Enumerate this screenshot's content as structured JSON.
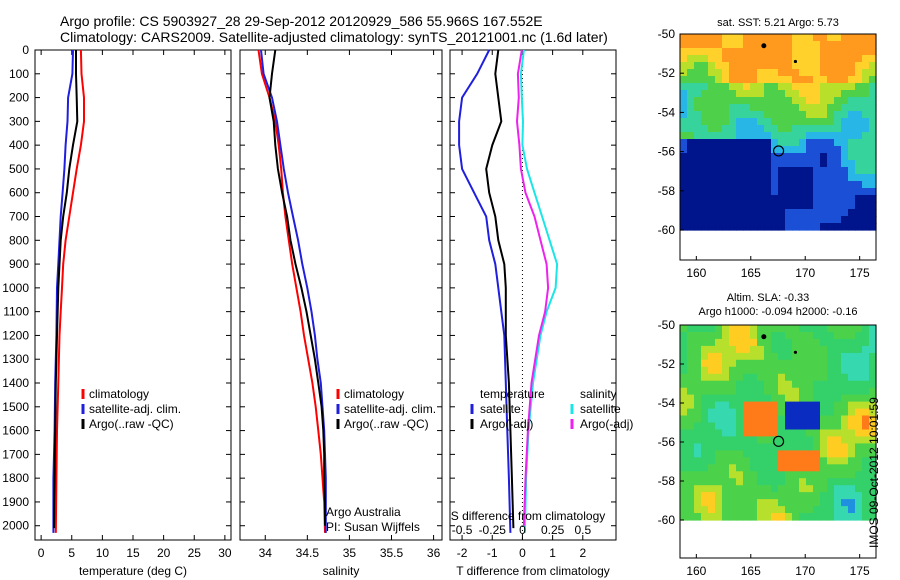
{
  "header": {
    "line1": "Argo profile: CS 5903927_28 29-Sep-2012 20120929_586 55.966S 167.552E",
    "line2": "Climatology: CARS2009. Satellite-adjusted climatology: synTS_20121001.nc (1.6d later)"
  },
  "credits": {
    "line1": "Argo Australia",
    "line2": "PI: Susan Wijffels"
  },
  "timestamp": "IMOS 09-Oct-2012 10:01:59",
  "colors": {
    "clim": "#ff0000",
    "sat": "#1f1fdd",
    "argo": "#000000",
    "cyan": "#19e6e6",
    "magenta": "#ee22ee"
  },
  "chart_data": [
    {
      "type": "line",
      "xlabel": "temperature (deg C)",
      "ylabel": "",
      "xlim": [
        -1,
        31
      ],
      "ylim": [
        2060,
        0
      ],
      "x_ticks": [
        0,
        5,
        10,
        15,
        20,
        25,
        30
      ],
      "y_ticks": [
        0,
        100,
        200,
        300,
        400,
        500,
        600,
        700,
        800,
        900,
        1000,
        1100,
        1200,
        1300,
        1400,
        1500,
        1600,
        1700,
        1800,
        1900,
        2000
      ],
      "legend": [
        "climatology",
        "satellite-adj. clim.",
        "Argo(..raw -QC)"
      ],
      "legend_placement": "lower-right",
      "series": [
        {
          "name": "climatology",
          "color": "clim",
          "points": [
            [
              6.5,
              0
            ],
            [
              6.6,
              100
            ],
            [
              7.0,
              200
            ],
            [
              7.0,
              300
            ],
            [
              6.5,
              400
            ],
            [
              5.8,
              500
            ],
            [
              5.2,
              600
            ],
            [
              4.6,
              700
            ],
            [
              4.0,
              800
            ],
            [
              3.6,
              900
            ],
            [
              3.4,
              1000
            ],
            [
              3.2,
              1100
            ],
            [
              3.0,
              1200
            ],
            [
              2.8,
              1400
            ],
            [
              2.6,
              1600
            ],
            [
              2.5,
              1800
            ],
            [
              2.4,
              2030
            ]
          ]
        },
        {
          "name": "satellite-adj. clim.",
          "color": "sat",
          "points": [
            [
              5.2,
              0
            ],
            [
              5.1,
              100
            ],
            [
              4.4,
              200
            ],
            [
              4.3,
              300
            ],
            [
              4.0,
              400
            ],
            [
              3.8,
              500
            ],
            [
              3.5,
              600
            ],
            [
              3.2,
              700
            ],
            [
              3.0,
              800
            ],
            [
              2.8,
              900
            ],
            [
              2.6,
              1000
            ],
            [
              2.5,
              1200
            ],
            [
              2.3,
              1400
            ],
            [
              2.2,
              1600
            ],
            [
              2.0,
              1800
            ],
            [
              2.0,
              2030
            ]
          ]
        },
        {
          "name": "Argo(..raw -QC)",
          "color": "argo",
          "points": [
            [
              5.7,
              0
            ],
            [
              5.7,
              100
            ],
            [
              5.8,
              200
            ],
            [
              5.9,
              300
            ],
            [
              5.2,
              400
            ],
            [
              4.6,
              500
            ],
            [
              4.2,
              600
            ],
            [
              3.6,
              700
            ],
            [
              3.2,
              800
            ],
            [
              3.0,
              900
            ],
            [
              2.8,
              1000
            ],
            [
              2.6,
              1200
            ],
            [
              2.4,
              1400
            ],
            [
              2.3,
              1600
            ],
            [
              2.2,
              1800
            ],
            [
              2.1,
              2010
            ]
          ]
        }
      ]
    },
    {
      "type": "line",
      "xlabel": "salinity",
      "xlim": [
        33.7,
        36.1
      ],
      "ylim": [
        2060,
        0
      ],
      "x_ticks": [
        34,
        34.5,
        35,
        35.5,
        36
      ],
      "legend": [
        "climatology",
        "satellite-adj. clim.",
        "Argo(..raw -QC)"
      ],
      "legend_placement": "lower-right",
      "series": [
        {
          "name": "climatology",
          "color": "clim",
          "points": [
            [
              33.92,
              0
            ],
            [
              33.96,
              100
            ],
            [
              34.05,
              200
            ],
            [
              34.12,
              300
            ],
            [
              34.16,
              400
            ],
            [
              34.19,
              500
            ],
            [
              34.21,
              600
            ],
            [
              34.24,
              700
            ],
            [
              34.28,
              800
            ],
            [
              34.32,
              900
            ],
            [
              34.37,
              1000
            ],
            [
              34.42,
              1100
            ],
            [
              34.46,
              1200
            ],
            [
              34.51,
              1300
            ],
            [
              34.56,
              1400
            ],
            [
              34.6,
              1500
            ],
            [
              34.63,
              1600
            ],
            [
              34.66,
              1700
            ],
            [
              34.68,
              1800
            ],
            [
              34.7,
              1900
            ],
            [
              34.71,
              2030
            ]
          ]
        },
        {
          "name": "satellite-adj. clim.",
          "color": "sat",
          "points": [
            [
              33.95,
              0
            ],
            [
              33.98,
              100
            ],
            [
              34.08,
              200
            ],
            [
              34.14,
              300
            ],
            [
              34.18,
              400
            ],
            [
              34.22,
              500
            ],
            [
              34.27,
              600
            ],
            [
              34.33,
              700
            ],
            [
              34.39,
              800
            ],
            [
              34.44,
              900
            ],
            [
              34.5,
              1000
            ],
            [
              34.55,
              1100
            ],
            [
              34.59,
              1200
            ],
            [
              34.62,
              1300
            ],
            [
              34.66,
              1400
            ],
            [
              34.68,
              1500
            ],
            [
              34.7,
              1600
            ],
            [
              34.71,
              1700
            ],
            [
              34.72,
              1800
            ],
            [
              34.72,
              1900
            ],
            [
              34.72,
              2030
            ]
          ]
        },
        {
          "name": "Argo(..raw -QC)",
          "color": "argo",
          "points": [
            [
              34.12,
              0
            ],
            [
              34.08,
              100
            ],
            [
              34.05,
              200
            ],
            [
              34.1,
              300
            ],
            [
              34.12,
              400
            ],
            [
              34.15,
              500
            ],
            [
              34.2,
              600
            ],
            [
              34.26,
              700
            ],
            [
              34.3,
              800
            ],
            [
              34.36,
              900
            ],
            [
              34.43,
              1000
            ],
            [
              34.49,
              1100
            ],
            [
              34.54,
              1200
            ],
            [
              34.59,
              1300
            ],
            [
              34.63,
              1400
            ],
            [
              34.67,
              1500
            ],
            [
              34.69,
              1600
            ],
            [
              34.7,
              1700
            ],
            [
              34.7,
              1800
            ],
            [
              34.71,
              1900
            ],
            [
              34.71,
              2000
            ]
          ]
        }
      ]
    },
    {
      "type": "line",
      "xlabel": "T difference from climatology",
      "x_ticks": [
        -2,
        -1,
        0,
        1,
        2
      ],
      "xlim": [
        -2.4,
        3.1
      ],
      "ylim": [
        2060,
        0
      ],
      "secondary_xlabel": "S difference from climatology",
      "secondary_x_ticks": [
        "-0.5",
        "-0.25",
        "0",
        "0.25",
        "0.5"
      ],
      "secondary_x_values": [
        -0.5,
        -0.25,
        0,
        0.25,
        0.5
      ],
      "zero_line": "dotted",
      "legend": [
        {
          "group": "temperature",
          "items": [
            "satellite",
            "Argo(-adj)"
          ]
        },
        {
          "group": "salinity",
          "items": [
            "satellite",
            "Argo(-adj)"
          ]
        }
      ],
      "series": [
        {
          "name": "temperature satellite",
          "color": "sat",
          "points": [
            [
              -1.1,
              0
            ],
            [
              -1.5,
              100
            ],
            [
              -2.0,
              200
            ],
            [
              -2.1,
              300
            ],
            [
              -2.1,
              400
            ],
            [
              -2.0,
              500
            ],
            [
              -1.6,
              600
            ],
            [
              -1.2,
              700
            ],
            [
              -1.1,
              800
            ],
            [
              -0.9,
              900
            ],
            [
              -0.8,
              1000
            ],
            [
              -0.7,
              1100
            ],
            [
              -0.6,
              1200
            ],
            [
              -0.55,
              1400
            ],
            [
              -0.5,
              1600
            ],
            [
              -0.45,
              1800
            ],
            [
              -0.4,
              2030
            ]
          ]
        },
        {
          "name": "temperature Argo(-adj)",
          "color": "argo",
          "points": [
            [
              -0.8,
              0
            ],
            [
              -0.9,
              100
            ],
            [
              -0.8,
              200
            ],
            [
              -0.7,
              300
            ],
            [
              -1.0,
              400
            ],
            [
              -1.2,
              500
            ],
            [
              -1.1,
              600
            ],
            [
              -0.9,
              700
            ],
            [
              -0.8,
              800
            ],
            [
              -0.6,
              900
            ],
            [
              -0.55,
              1000
            ],
            [
              -0.55,
              1200
            ],
            [
              -0.45,
              1400
            ],
            [
              -0.4,
              1600
            ],
            [
              -0.35,
              1800
            ],
            [
              -0.3,
              2010
            ]
          ]
        },
        {
          "name": "salinity satellite",
          "color": "cyan",
          "points": [
            [
              0.05,
              0
            ],
            [
              -0.05,
              100
            ],
            [
              -0.02,
              200
            ],
            [
              0.02,
              300
            ],
            [
              0.0,
              400
            ],
            [
              0.15,
              500
            ],
            [
              0.4,
              600
            ],
            [
              0.65,
              700
            ],
            [
              0.9,
              800
            ],
            [
              1.15,
              900
            ],
            [
              1.1,
              1000
            ],
            [
              0.8,
              1100
            ],
            [
              0.6,
              1200
            ],
            [
              0.35,
              1400
            ],
            [
              0.2,
              1600
            ],
            [
              0.12,
              1800
            ],
            [
              0.08,
              2030
            ]
          ]
        },
        {
          "name": "salinity Argo(-adj)",
          "color": "magenta",
          "points": [
            [
              -0.02,
              0
            ],
            [
              -0.15,
              100
            ],
            [
              -0.12,
              200
            ],
            [
              -0.18,
              300
            ],
            [
              -0.1,
              400
            ],
            [
              -0.05,
              500
            ],
            [
              0.1,
              600
            ],
            [
              0.4,
              700
            ],
            [
              0.6,
              800
            ],
            [
              0.8,
              900
            ],
            [
              0.85,
              1000
            ],
            [
              0.75,
              1100
            ],
            [
              0.55,
              1200
            ],
            [
              0.3,
              1400
            ],
            [
              0.18,
              1600
            ],
            [
              0.1,
              1800
            ],
            [
              0.05,
              2000
            ]
          ]
        }
      ]
    },
    {
      "type": "heatmap",
      "title": "sat. SST: 5.21  Argo: 5.73",
      "xlim": [
        158.5,
        176.5
      ],
      "ylim": [
        -60,
        -50
      ],
      "x_ticks": [
        160,
        165,
        170,
        175
      ],
      "y_ticks": [
        -50,
        -52,
        -54,
        -56,
        -58,
        -60
      ],
      "float_position": [
        167.552,
        -55.966
      ]
    },
    {
      "type": "heatmap",
      "title": "Altim. SLA: -0.33",
      "subtitle": "Argo h1000: -0.094  h2000: -0.16",
      "xlim": [
        158.5,
        176.5
      ],
      "ylim": [
        -60,
        -50
      ],
      "x_ticks": [
        160,
        165,
        170,
        175
      ],
      "y_ticks": [
        -50,
        -52,
        -54,
        -56,
        -58,
        -60
      ],
      "float_position": [
        167.552,
        -55.966
      ]
    }
  ]
}
